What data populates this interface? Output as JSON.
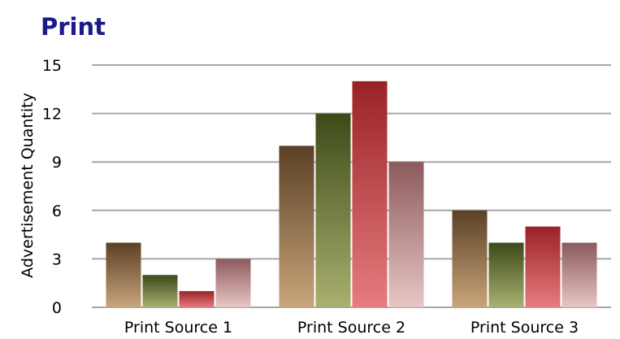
{
  "chart_data": {
    "type": "bar",
    "title": "Print",
    "xlabel": "",
    "ylabel": "Advertisement Quantity",
    "categories": [
      "Print Source 1",
      "Print Source 2",
      "Print Source 3"
    ],
    "ylim": [
      0,
      15
    ],
    "yticks": [
      0,
      3,
      6,
      9,
      12,
      15
    ],
    "grid": true,
    "legend": "none",
    "series": [
      {
        "values": [
          4,
          10,
          6
        ],
        "color_top": "#5a4025",
        "color_bottom": "#c9a57a"
      },
      {
        "values": [
          2,
          12,
          4
        ],
        "color_top": "#3d4a18",
        "color_bottom": "#a9b070"
      },
      {
        "values": [
          1,
          14,
          5
        ],
        "color_top": "#9a2226",
        "color_bottom": "#e67c7f"
      },
      {
        "values": [
          3,
          9,
          4
        ],
        "color_top": "#8c5a5c",
        "color_bottom": "#e8c6c6"
      }
    ]
  }
}
